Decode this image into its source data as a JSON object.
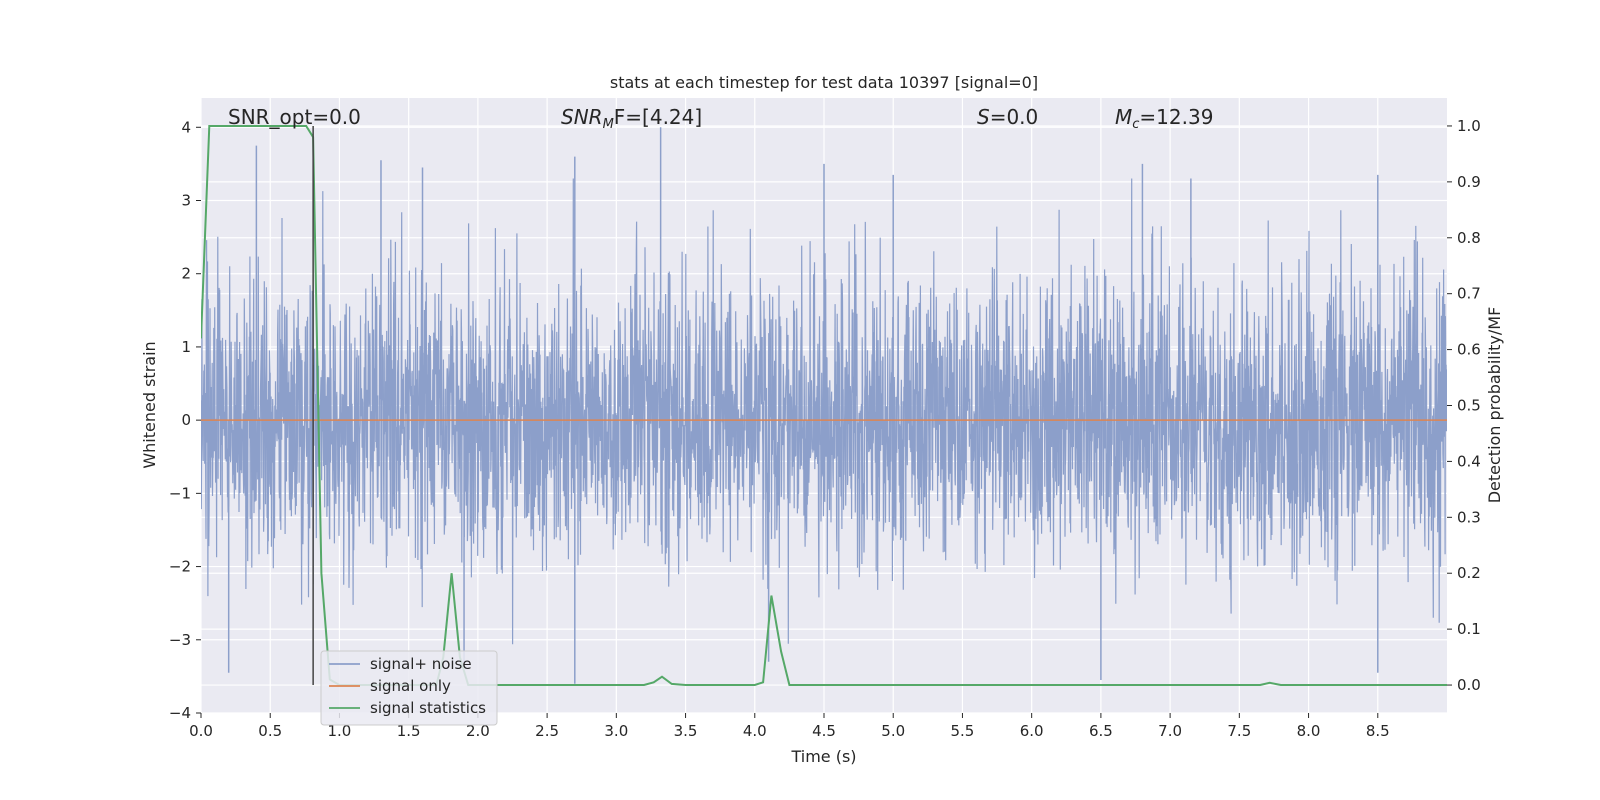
{
  "chart_data": {
    "type": "line",
    "title": "stats at each timestep for test data 10397 [signal=0]",
    "xlabel": "Time (s)",
    "ylabel": "Whitened strain",
    "y2label": "Detection probability/MF",
    "xlim": [
      0.0,
      9.0
    ],
    "ylim": [
      -4.0,
      4.4
    ],
    "y2lim": [
      -0.05,
      1.05
    ],
    "xticks": [
      "0.0",
      "0.5",
      "1.0",
      "1.5",
      "2.0",
      "2.5",
      "3.0",
      "3.5",
      "4.0",
      "4.5",
      "5.0",
      "5.5",
      "6.0",
      "6.5",
      "7.0",
      "7.5",
      "8.0",
      "8.5"
    ],
    "yticks": [
      "4",
      "3",
      "2",
      "1",
      "0",
      "−1",
      "−2",
      "−3",
      "−4"
    ],
    "y2ticks": [
      "1.0",
      "0.9",
      "0.8",
      "0.7",
      "0.6",
      "0.5",
      "0.4",
      "0.3",
      "0.2",
      "0.1",
      "0.0"
    ],
    "grid": true,
    "legend_position": "lower-left",
    "annotations": {
      "snr_opt": "SNR_opt=0.0",
      "snr_mf_label": "SNR",
      "snr_mf_sub": "M",
      "snr_mf_tail": "F=[4.24]",
      "s_label": "S",
      "s_value": "=0.0",
      "mc_label": "M",
      "mc_sub": "c",
      "mc_value": "=12.39"
    },
    "vline_x": 0.81,
    "series": [
      {
        "name": "signal+ noise",
        "color": "#8c9fca",
        "description_values": "dense whitened noise, roughly N(0,0.9), range about -3.6 to 4.0",
        "peaks": [
          {
            "x": 0.4,
            "y": 3.75
          },
          {
            "x": 1.3,
            "y": 3.55
          },
          {
            "x": 1.6,
            "y": 3.45
          },
          {
            "x": 2.7,
            "y": 3.6
          },
          {
            "x": 3.32,
            "y": 4.0
          },
          {
            "x": 4.5,
            "y": 3.5
          },
          {
            "x": 5.0,
            "y": 3.35
          },
          {
            "x": 6.8,
            "y": 3.5
          },
          {
            "x": 7.15,
            "y": 3.3
          },
          {
            "x": 8.5,
            "y": 3.35
          },
          {
            "x": 1.9,
            "y": -3.35
          },
          {
            "x": 2.7,
            "y": -3.6
          },
          {
            "x": 4.1,
            "y": -3.3
          },
          {
            "x": 6.5,
            "y": -3.55
          },
          {
            "x": 8.5,
            "y": -3.45
          },
          {
            "x": 0.2,
            "y": -3.45
          }
        ]
      },
      {
        "name": "signal only",
        "color": "#dd8452",
        "x": [
          0.0,
          9.0
        ],
        "y": [
          0.0,
          0.0
        ]
      },
      {
        "name": "signal statistics",
        "color": "#55a868",
        "x": [
          0.0,
          0.06,
          0.12,
          0.2,
          0.3,
          0.4,
          0.5,
          0.6,
          0.7,
          0.76,
          0.81,
          0.87,
          0.93,
          1.0,
          1.1,
          1.2,
          1.3,
          1.5,
          1.7,
          1.75,
          1.81,
          1.87,
          1.93,
          2.0,
          2.5,
          3.0,
          3.2,
          3.27,
          3.33,
          3.4,
          3.5,
          4.0,
          4.06,
          4.12,
          4.19,
          4.25,
          4.3,
          5.0,
          6.0,
          7.0,
          7.65,
          7.72,
          7.8,
          8.0,
          8.5,
          9.0
        ],
        "y": [
          0.62,
          1.0,
          1.0,
          1.0,
          1.0,
          1.0,
          1.0,
          1.0,
          1.0,
          1.0,
          0.98,
          0.2,
          0.01,
          0.0,
          0.0,
          0.0,
          0.0,
          0.0,
          0.0,
          0.05,
          0.2,
          0.05,
          0.0,
          0.0,
          0.0,
          0.0,
          0.0,
          0.005,
          0.015,
          0.002,
          0.0,
          0.0,
          0.005,
          0.16,
          0.06,
          0.0,
          0.0,
          0.0,
          0.0,
          0.0,
          0.0,
          0.004,
          0.0,
          0.0,
          0.0,
          0.0
        ]
      }
    ]
  }
}
